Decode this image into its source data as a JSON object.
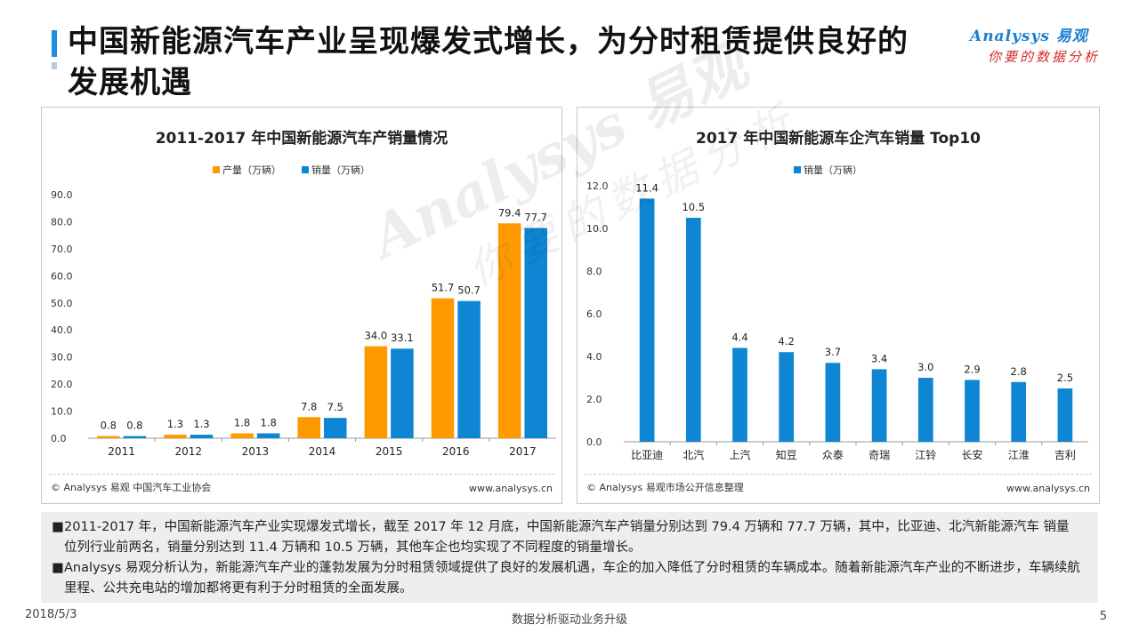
{
  "header": {
    "title": "中国新能源汽车产业呈现爆发式增长，为分时租赁提供良好的发展机遇",
    "logo_brand": "Analysys 易观",
    "logo_tagline": "你要的数据分析"
  },
  "colors": {
    "accent": "#1a8fdc",
    "orange": "#ff9900",
    "blue": "#0e86d4"
  },
  "chart_data": [
    {
      "type": "bar",
      "title": "2011-2017 年中国新能源汽车产销量情况",
      "categories": [
        "2011",
        "2012",
        "2013",
        "2014",
        "2015",
        "2016",
        "2017"
      ],
      "series": [
        {
          "name": "产量（万辆）",
          "color": "#ff9900",
          "values": [
            0.8,
            1.3,
            1.8,
            7.8,
            34.0,
            51.7,
            79.4
          ]
        },
        {
          "name": "销量（万辆）",
          "color": "#0e86d4",
          "values": [
            0.8,
            1.3,
            1.8,
            7.5,
            33.1,
            50.7,
            77.7
          ]
        }
      ],
      "data_labels": [
        [
          "0.8",
          "1.3",
          "1.8",
          "7.8",
          "34.0",
          "51.7",
          "79.4"
        ],
        [
          "0.8",
          "1.3",
          "1.8",
          "7.5",
          "33.1",
          "50.7",
          "77.7"
        ]
      ],
      "ylim": [
        0,
        90
      ],
      "yticks": [
        "0.0",
        "10.0",
        "20.0",
        "30.0",
        "40.0",
        "50.0",
        "60.0",
        "70.0",
        "80.0",
        "90.0"
      ],
      "legend": "top-center",
      "grid": false,
      "source": "© Analysys 易观 中国汽车工业协会",
      "site": "www.analysys.cn"
    },
    {
      "type": "bar",
      "title": "2017 年中国新能源车企汽车销量 Top10",
      "categories": [
        "比亚迪",
        "北汽",
        "上汽",
        "知豆",
        "众泰",
        "奇瑞",
        "江铃",
        "长安",
        "江淮",
        "吉利"
      ],
      "series": [
        {
          "name": "销量（万辆）",
          "color": "#0e86d4",
          "values": [
            11.4,
            10.5,
            4.4,
            4.2,
            3.7,
            3.4,
            3.0,
            2.9,
            2.8,
            2.5
          ]
        }
      ],
      "data_labels": [
        [
          "11.4",
          "10.5",
          "4.4",
          "4.2",
          "3.7",
          "3.4",
          "3.0",
          "2.9",
          "2.8",
          "2.5"
        ]
      ],
      "ylim": [
        0,
        12
      ],
      "yticks": [
        "0.0",
        "2.0",
        "4.0",
        "6.0",
        "8.0",
        "10.0",
        "12.0"
      ],
      "legend": "top-center",
      "grid": false,
      "source": "© Analysys 易观市场公开信息整理",
      "site": "www.analysys.cn"
    }
  ],
  "notes": [
    "2011-2017 年，中国新能源汽车产业实现爆发式增长，截至 2017 年 12 月底，中国新能源汽车产销量分别达到 79.4 万辆和 77.7 万辆，其中，比亚迪、北汽新能源汽车 销量位列行业前两名，销量分别达到 11.4 万辆和 10.5 万辆，其他车企也均实现了不同程度的销量增长。",
    "Analysys 易观分析认为，新能源汽车产业的蓬勃发展为分时租赁领域提供了良好的发展机遇，车企的加入降低了分时租赁的车辆成本。随着新能源汽车产业的不断进步，车辆续航里程、公共充电站的增加都将更有利于分时租赁的全面发展。"
  ],
  "bullet": "■",
  "watermark": {
    "brand": "Analysys 易观",
    "tagline": "你要的数据分析"
  },
  "footer": {
    "date": "2018/5/3",
    "center": "数据分析驱动业务升级",
    "page": "5"
  }
}
